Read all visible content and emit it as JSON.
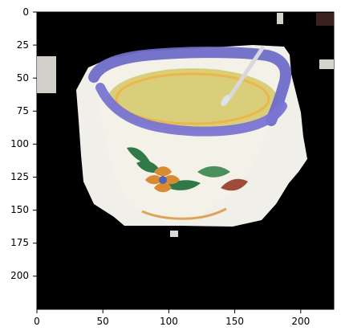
{
  "figure": {
    "x_ticks": [
      "0",
      "50",
      "100",
      "150",
      "200"
    ],
    "y_ticks": [
      "0",
      "25",
      "50",
      "75",
      "100",
      "125",
      "150",
      "175",
      "200"
    ],
    "image_description_colors": {
      "background": "#000000",
      "cup_body": "#f1ede0",
      "cup_rim": "#6d68c6",
      "soup": "#d9cf7a",
      "saucer": "#f3f1ec",
      "spoon": "#c9cbd0",
      "flower_orange": "#d88b33",
      "flower_blue": "#5064b2",
      "leaf_green": "#2f7a48",
      "leaf_red": "#9f4b3a"
    }
  }
}
